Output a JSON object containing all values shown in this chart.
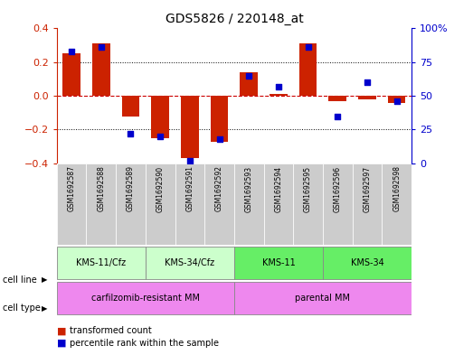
{
  "title": "GDS5826 / 220148_at",
  "samples": [
    "GSM1692587",
    "GSM1692588",
    "GSM1692589",
    "GSM1692590",
    "GSM1692591",
    "GSM1692592",
    "GSM1692593",
    "GSM1692594",
    "GSM1692595",
    "GSM1692596",
    "GSM1692597",
    "GSM1692598"
  ],
  "transformed_count": [
    0.25,
    0.31,
    -0.12,
    -0.25,
    -0.37,
    -0.27,
    0.14,
    0.01,
    0.31,
    -0.03,
    -0.02,
    -0.04
  ],
  "percentile_rank": [
    83,
    86,
    22,
    20,
    2,
    18,
    65,
    57,
    86,
    35,
    60,
    46
  ],
  "bar_color": "#cc2200",
  "dot_color": "#0000cc",
  "ylim": [
    -0.4,
    0.4
  ],
  "y2lim": [
    0,
    100
  ],
  "yticks": [
    -0.4,
    -0.2,
    0.0,
    0.2,
    0.4
  ],
  "y2ticks": [
    0,
    25,
    50,
    75,
    100
  ],
  "y2ticklabels": [
    "0",
    "25",
    "50",
    "75",
    "100%"
  ],
  "hline_color": "#cc0000",
  "sample_bg_color": "#cccccc",
  "cell_line_groups": [
    {
      "label": "KMS-11/Cfz",
      "start": 0,
      "end": 2,
      "color": "#ccffcc"
    },
    {
      "label": "KMS-34/Cfz",
      "start": 3,
      "end": 5,
      "color": "#ccffcc"
    },
    {
      "label": "KMS-11",
      "start": 6,
      "end": 8,
      "color": "#66ee66"
    },
    {
      "label": "KMS-34",
      "start": 9,
      "end": 11,
      "color": "#66ee66"
    }
  ],
  "cell_type_groups": [
    {
      "label": "carfilzomib-resistant MM",
      "start": 0,
      "end": 5,
      "color": "#ee88ee"
    },
    {
      "label": "parental MM",
      "start": 6,
      "end": 11,
      "color": "#ee88ee"
    }
  ]
}
